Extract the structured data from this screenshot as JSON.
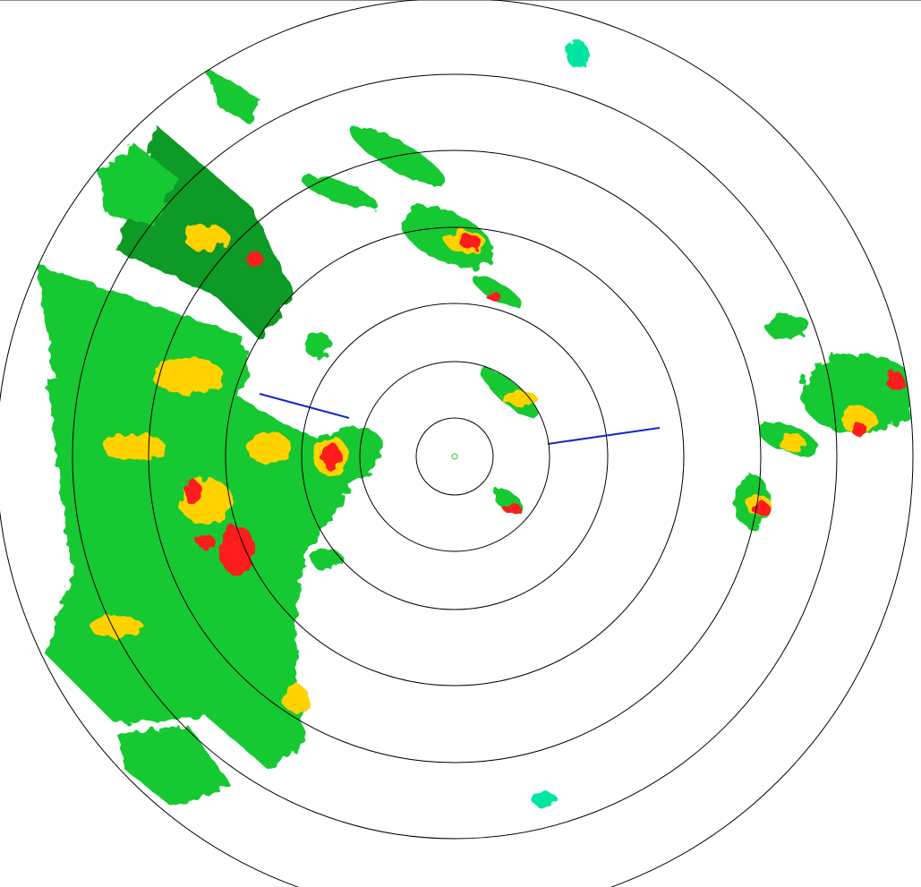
{
  "radar": {
    "range_rings": 7,
    "ring_color": "#000000",
    "reflectivity_colors": {
      "very_light": "#00e6a0",
      "light": "#14c832",
      "moderate": "#0a9a28",
      "heavy": "#ffd200",
      "very_heavy": "#ff9600",
      "intense": "#ff1e1e",
      "weak_return": "#1428c8"
    }
  }
}
